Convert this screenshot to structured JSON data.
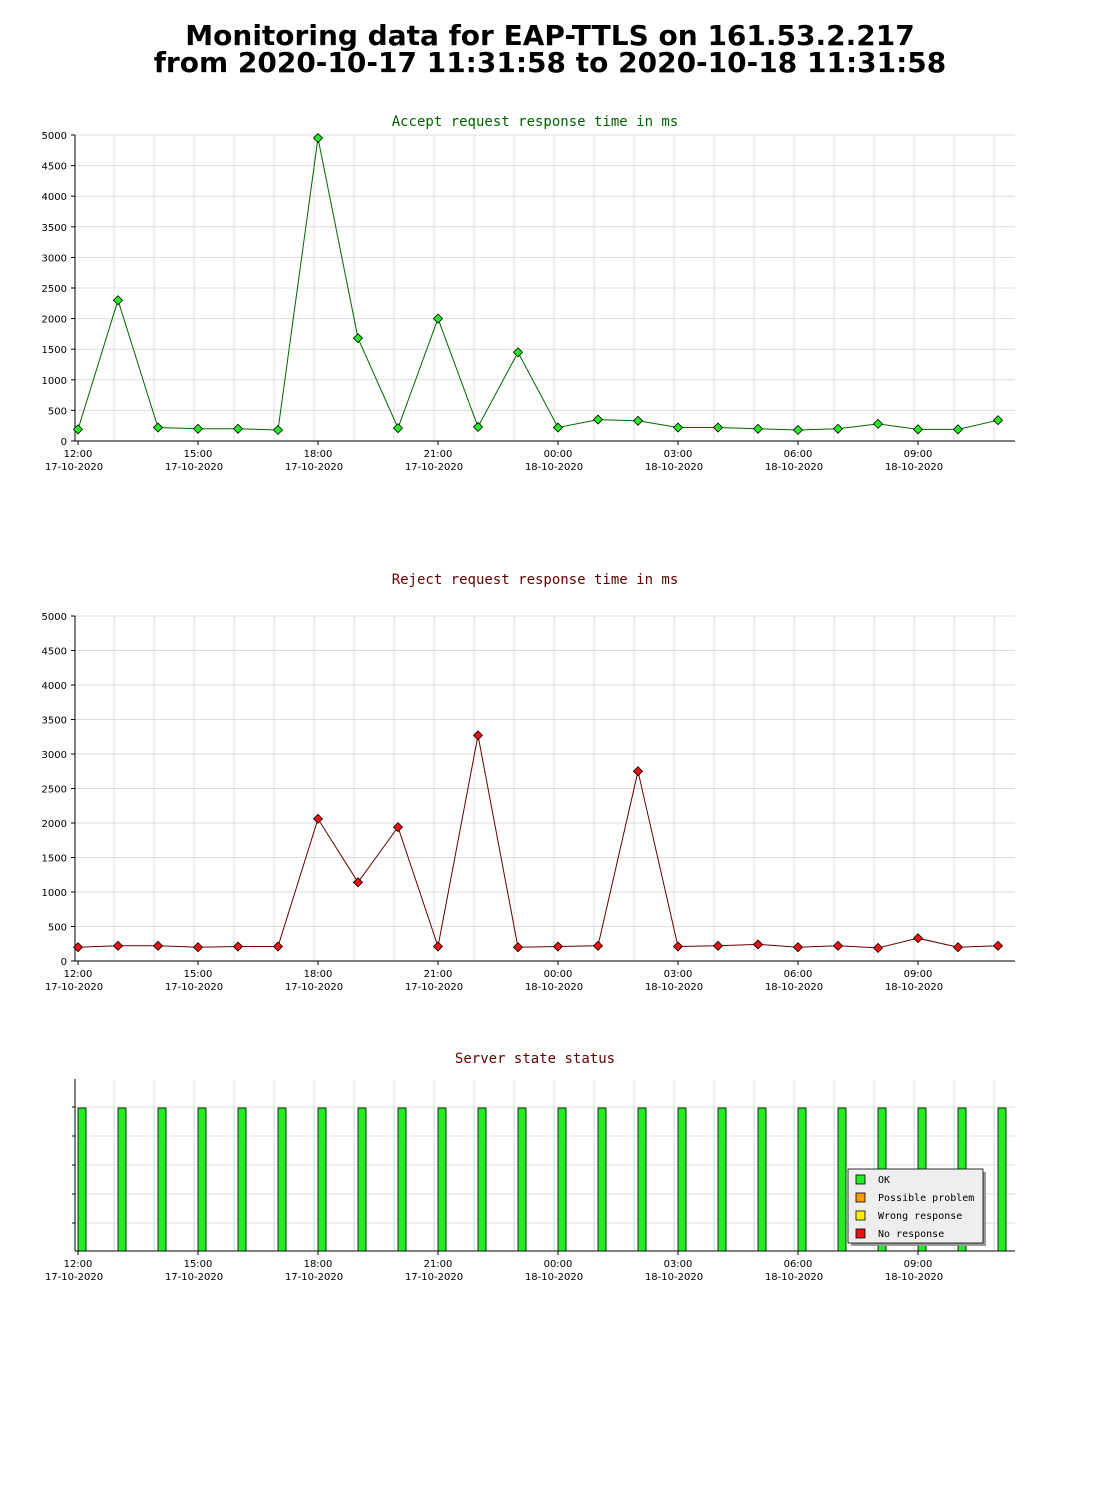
{
  "page": {
    "title_line1": "Monitoring data for EAP-TTLS on 161.53.2.217",
    "title_line2": "from 2020-10-17 11:31:58 to 2020-10-18 11:31:58"
  },
  "chart_data": [
    {
      "id": "accept",
      "type": "line",
      "title": "Accept request response time in ms",
      "title_color": "#006400",
      "line_color": "#006600",
      "marker_color": "#22ee22",
      "grid": true,
      "ylim": [
        0,
        5000
      ],
      "yticks": [
        0,
        500,
        1000,
        1500,
        2000,
        2500,
        3000,
        3500,
        4000,
        4500,
        5000
      ],
      "xticks": [
        {
          "time": "12:00",
          "date": "17-10-2020"
        },
        {
          "time": "15:00",
          "date": "17-10-2020"
        },
        {
          "time": "18:00",
          "date": "17-10-2020"
        },
        {
          "time": "21:00",
          "date": "17-10-2020"
        },
        {
          "time": "00:00",
          "date": "18-10-2020"
        },
        {
          "time": "03:00",
          "date": "18-10-2020"
        },
        {
          "time": "06:00",
          "date": "18-10-2020"
        },
        {
          "time": "09:00",
          "date": "18-10-2020"
        }
      ],
      "x": [
        "2020-10-17 12:00",
        "2020-10-17 13:00",
        "2020-10-17 14:00",
        "2020-10-17 15:00",
        "2020-10-17 16:00",
        "2020-10-17 17:00",
        "2020-10-17 18:00",
        "2020-10-17 19:00",
        "2020-10-17 20:00",
        "2020-10-17 21:00",
        "2020-10-17 22:00",
        "2020-10-17 23:00",
        "2020-10-18 00:00",
        "2020-10-18 01:00",
        "2020-10-18 02:00",
        "2020-10-18 03:00",
        "2020-10-18 04:00",
        "2020-10-18 05:00",
        "2020-10-18 06:00",
        "2020-10-18 07:00",
        "2020-10-18 08:00",
        "2020-10-18 09:00",
        "2020-10-18 10:00",
        "2020-10-18 11:00"
      ],
      "values": [
        190,
        2300,
        220,
        200,
        200,
        180,
        4950,
        1680,
        210,
        2000,
        230,
        1450,
        220,
        350,
        330,
        220,
        220,
        200,
        180,
        200,
        280,
        190,
        190,
        340
      ]
    },
    {
      "id": "reject",
      "type": "line",
      "title": "Reject request response time in ms",
      "title_color": "#640000",
      "line_color": "#660000",
      "marker_color": "#ee1111",
      "grid": true,
      "ylim": [
        0,
        5000
      ],
      "yticks": [
        0,
        500,
        1000,
        1500,
        2000,
        2500,
        3000,
        3500,
        4000,
        4500,
        5000
      ],
      "xticks": [
        {
          "time": "12:00",
          "date": "17-10-2020"
        },
        {
          "time": "15:00",
          "date": "17-10-2020"
        },
        {
          "time": "18:00",
          "date": "17-10-2020"
        },
        {
          "time": "21:00",
          "date": "17-10-2020"
        },
        {
          "time": "00:00",
          "date": "18-10-2020"
        },
        {
          "time": "03:00",
          "date": "18-10-2020"
        },
        {
          "time": "06:00",
          "date": "18-10-2020"
        },
        {
          "time": "09:00",
          "date": "18-10-2020"
        }
      ],
      "x": [
        "2020-10-17 12:00",
        "2020-10-17 13:00",
        "2020-10-17 14:00",
        "2020-10-17 15:00",
        "2020-10-17 16:00",
        "2020-10-17 17:00",
        "2020-10-17 18:00",
        "2020-10-17 19:00",
        "2020-10-17 20:00",
        "2020-10-17 21:00",
        "2020-10-17 22:00",
        "2020-10-17 23:00",
        "2020-10-18 00:00",
        "2020-10-18 01:00",
        "2020-10-18 02:00",
        "2020-10-18 03:00",
        "2020-10-18 04:00",
        "2020-10-18 05:00",
        "2020-10-18 06:00",
        "2020-10-18 07:00",
        "2020-10-18 08:00",
        "2020-10-18 09:00",
        "2020-10-18 10:00",
        "2020-10-18 11:00"
      ],
      "values": [
        200,
        220,
        220,
        200,
        210,
        210,
        2060,
        1140,
        1940,
        210,
        3270,
        200,
        210,
        220,
        2750,
        210,
        220,
        240,
        200,
        220,
        190,
        330,
        200,
        220
      ]
    },
    {
      "id": "status",
      "type": "bar",
      "title": "Server state status",
      "title_color": "#640000",
      "grid": true,
      "xticks": [
        {
          "time": "12:00",
          "date": "17-10-2020"
        },
        {
          "time": "15:00",
          "date": "17-10-2020"
        },
        {
          "time": "18:00",
          "date": "17-10-2020"
        },
        {
          "time": "21:00",
          "date": "17-10-2020"
        },
        {
          "time": "00:00",
          "date": "18-10-2020"
        },
        {
          "time": "03:00",
          "date": "18-10-2020"
        },
        {
          "time": "06:00",
          "date": "18-10-2020"
        },
        {
          "time": "09:00",
          "date": "18-10-2020"
        }
      ],
      "x": [
        "2020-10-17 12:00",
        "2020-10-17 13:00",
        "2020-10-17 14:00",
        "2020-10-17 15:00",
        "2020-10-17 16:00",
        "2020-10-17 17:00",
        "2020-10-17 18:00",
        "2020-10-17 19:00",
        "2020-10-17 20:00",
        "2020-10-17 21:00",
        "2020-10-17 22:00",
        "2020-10-17 23:00",
        "2020-10-18 00:00",
        "2020-10-18 01:00",
        "2020-10-18 02:00",
        "2020-10-18 03:00",
        "2020-10-18 04:00",
        "2020-10-18 05:00",
        "2020-10-18 06:00",
        "2020-10-18 07:00",
        "2020-10-18 08:00",
        "2020-10-18 09:00",
        "2020-10-18 10:00",
        "2020-10-18 11:00"
      ],
      "states": [
        "OK",
        "OK",
        "OK",
        "OK",
        "OK",
        "OK",
        "OK",
        "OK",
        "OK",
        "OK",
        "OK",
        "OK",
        "OK",
        "OK",
        "OK",
        "OK",
        "OK",
        "OK",
        "OK",
        "OK",
        "OK",
        "OK",
        "OK",
        "OK"
      ],
      "legend_position": "bottom-right",
      "legend": [
        {
          "label": "OK",
          "color": "#22ee22"
        },
        {
          "label": "Possible problem",
          "color": "#ff9900"
        },
        {
          "label": "Wrong response",
          "color": "#ffee00"
        },
        {
          "label": "No response",
          "color": "#ee1111"
        }
      ]
    }
  ]
}
